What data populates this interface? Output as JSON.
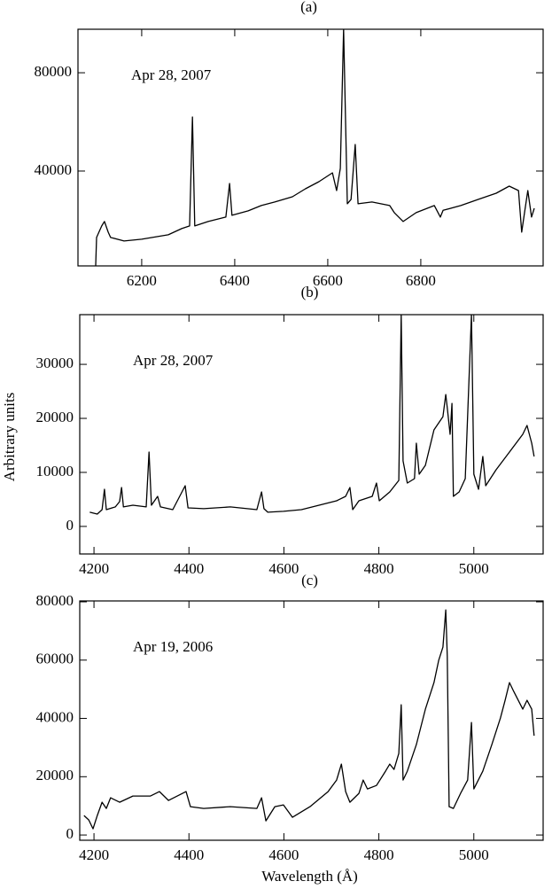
{
  "chart_data": [
    {
      "type": "line",
      "title": "(a)",
      "annotation": "Apr 28, 2007",
      "xlim": [
        6063,
        7063
      ],
      "ylim": [
        1400,
        97700
      ],
      "xticks": [
        6200,
        6400,
        6600,
        6800
      ],
      "yticks": [
        40000,
        80000
      ],
      "series": [
        {
          "color": "#000000",
          "x": [
            6101,
            6103,
            6114,
            6120,
            6128,
            6133,
            6162,
            6200,
            6257,
            6286,
            6303,
            6309,
            6314,
            6343,
            6381,
            6389,
            6394,
            6429,
            6457,
            6486,
            6524,
            6552,
            6581,
            6610,
            6619,
            6627,
            6634,
            6642,
            6650,
            6659,
            6665,
            6695,
            6733,
            6743,
            6762,
            6790,
            6829,
            6842,
            6848,
            6886,
            6924,
            6962,
            6990,
            7010,
            7017,
            7023,
            7030,
            7038,
            7044
          ],
          "values": [
            1500,
            12970,
            17660,
            19460,
            15135,
            12970,
            11530,
            12250,
            14050,
            16580,
            17660,
            61980,
            17660,
            19460,
            21260,
            34950,
            21980,
            23780,
            25950,
            27390,
            29550,
            32790,
            35680,
            39280,
            32070,
            41080,
            97700,
            26670,
            28470,
            50810,
            26670,
            27390,
            25950,
            23060,
            19460,
            23060,
            25950,
            21260,
            24000,
            25950,
            28470,
            30990,
            33870,
            32070,
            15135,
            23060,
            32070,
            21260,
            24860
          ]
        }
      ]
    },
    {
      "type": "line",
      "title": "(b)",
      "annotation": "Apr 28, 2007",
      "ylabel": "Arbitrary units",
      "xlim": [
        4170,
        5146
      ],
      "ylim": [
        -5100,
        39200
      ],
      "xticks": [
        4200,
        4400,
        4600,
        4800,
        5000
      ],
      "yticks": [
        0,
        10000,
        20000,
        30000
      ],
      "series": [
        {
          "color": "#000000",
          "x": [
            4191,
            4207,
            4217,
            4222,
            4226,
            4245,
            4254,
            4258,
            4262,
            4282,
            4310,
            4316,
            4321,
            4334,
            4340,
            4366,
            4392,
            4398,
            4431,
            4487,
            4543,
            4553,
            4558,
            4566,
            4599,
            4637,
            4674,
            4711,
            4730,
            4739,
            4745,
            4758,
            4786,
            4795,
            4801,
            4823,
            4842,
            4847,
            4851,
            4860,
            4875,
            4879,
            4885,
            4898,
            4916,
            4935,
            4941,
            4944,
            4950,
            4954,
            4957,
            4969,
            4982,
            4995,
            5000,
            5010,
            5019,
            5025,
            5047,
            5075,
            5103,
            5112,
            5122,
            5127
          ],
          "values": [
            2620,
            2290,
            3110,
            6880,
            3110,
            3610,
            4590,
            7210,
            3610,
            3930,
            3610,
            13770,
            3930,
            5570,
            3610,
            3110,
            7540,
            3440,
            3280,
            3610,
            3110,
            6390,
            3280,
            2620,
            2790,
            3110,
            3930,
            4750,
            5570,
            7210,
            3110,
            4750,
            5570,
            8030,
            4750,
            6390,
            8520,
            39200,
            12130,
            8030,
            8850,
            15410,
            9670,
            11310,
            17870,
            20320,
            24420,
            21960,
            17050,
            22780,
            5570,
            6390,
            8850,
            39200,
            9670,
            6880,
            12950,
            7540,
            10490,
            13770,
            17050,
            18690,
            15410,
            12950
          ]
        }
      ]
    },
    {
      "type": "line",
      "title": "(c)",
      "annotation": "Apr 19, 2006",
      "xlabel": "Wavelength (Å)",
      "xlim": [
        4170,
        5146
      ],
      "ylim": [
        -1800,
        80300
      ],
      "xticks": [
        4200,
        4400,
        4600,
        4800,
        5000
      ],
      "yticks": [
        0,
        20000,
        40000,
        60000,
        80000
      ],
      "series": [
        {
          "color": "#000000",
          "x": [
            4179,
            4189,
            4198,
            4207,
            4217,
            4226,
            4235,
            4254,
            4282,
            4319,
            4338,
            4357,
            4394,
            4403,
            4431,
            4487,
            4543,
            4553,
            4562,
            4581,
            4599,
            4618,
            4655,
            4693,
            4711,
            4721,
            4730,
            4739,
            4758,
            4767,
            4776,
            4795,
            4814,
            4823,
            4832,
            4842,
            4847,
            4851,
            4860,
            4879,
            4898,
            4916,
            4926,
            4935,
            4941,
            4944,
            4948,
            4957,
            4972,
            4987,
            4995,
            5000,
            5019,
            5038,
            5056,
            5066,
            5075,
            5084,
            5103,
            5112,
            5122,
            5127
          ],
          "values": [
            6690,
            5170,
            2130,
            6690,
            11250,
            9120,
            12770,
            11250,
            13380,
            13380,
            14900,
            11860,
            14900,
            9730,
            9120,
            9730,
            9120,
            12770,
            4870,
            9730,
            10340,
            6080,
            9730,
            14900,
            18850,
            24330,
            14900,
            11250,
            14290,
            18850,
            15810,
            17000,
            21900,
            24330,
            22500,
            27980,
            44700,
            18850,
            21900,
            31020,
            43180,
            52300,
            59910,
            64470,
            77240,
            61430,
            9730,
            9120,
            14290,
            18850,
            38620,
            15810,
            21900,
            31020,
            40140,
            46220,
            52300,
            49260,
            43180,
            46220,
            43180,
            34060
          ]
        }
      ]
    }
  ]
}
